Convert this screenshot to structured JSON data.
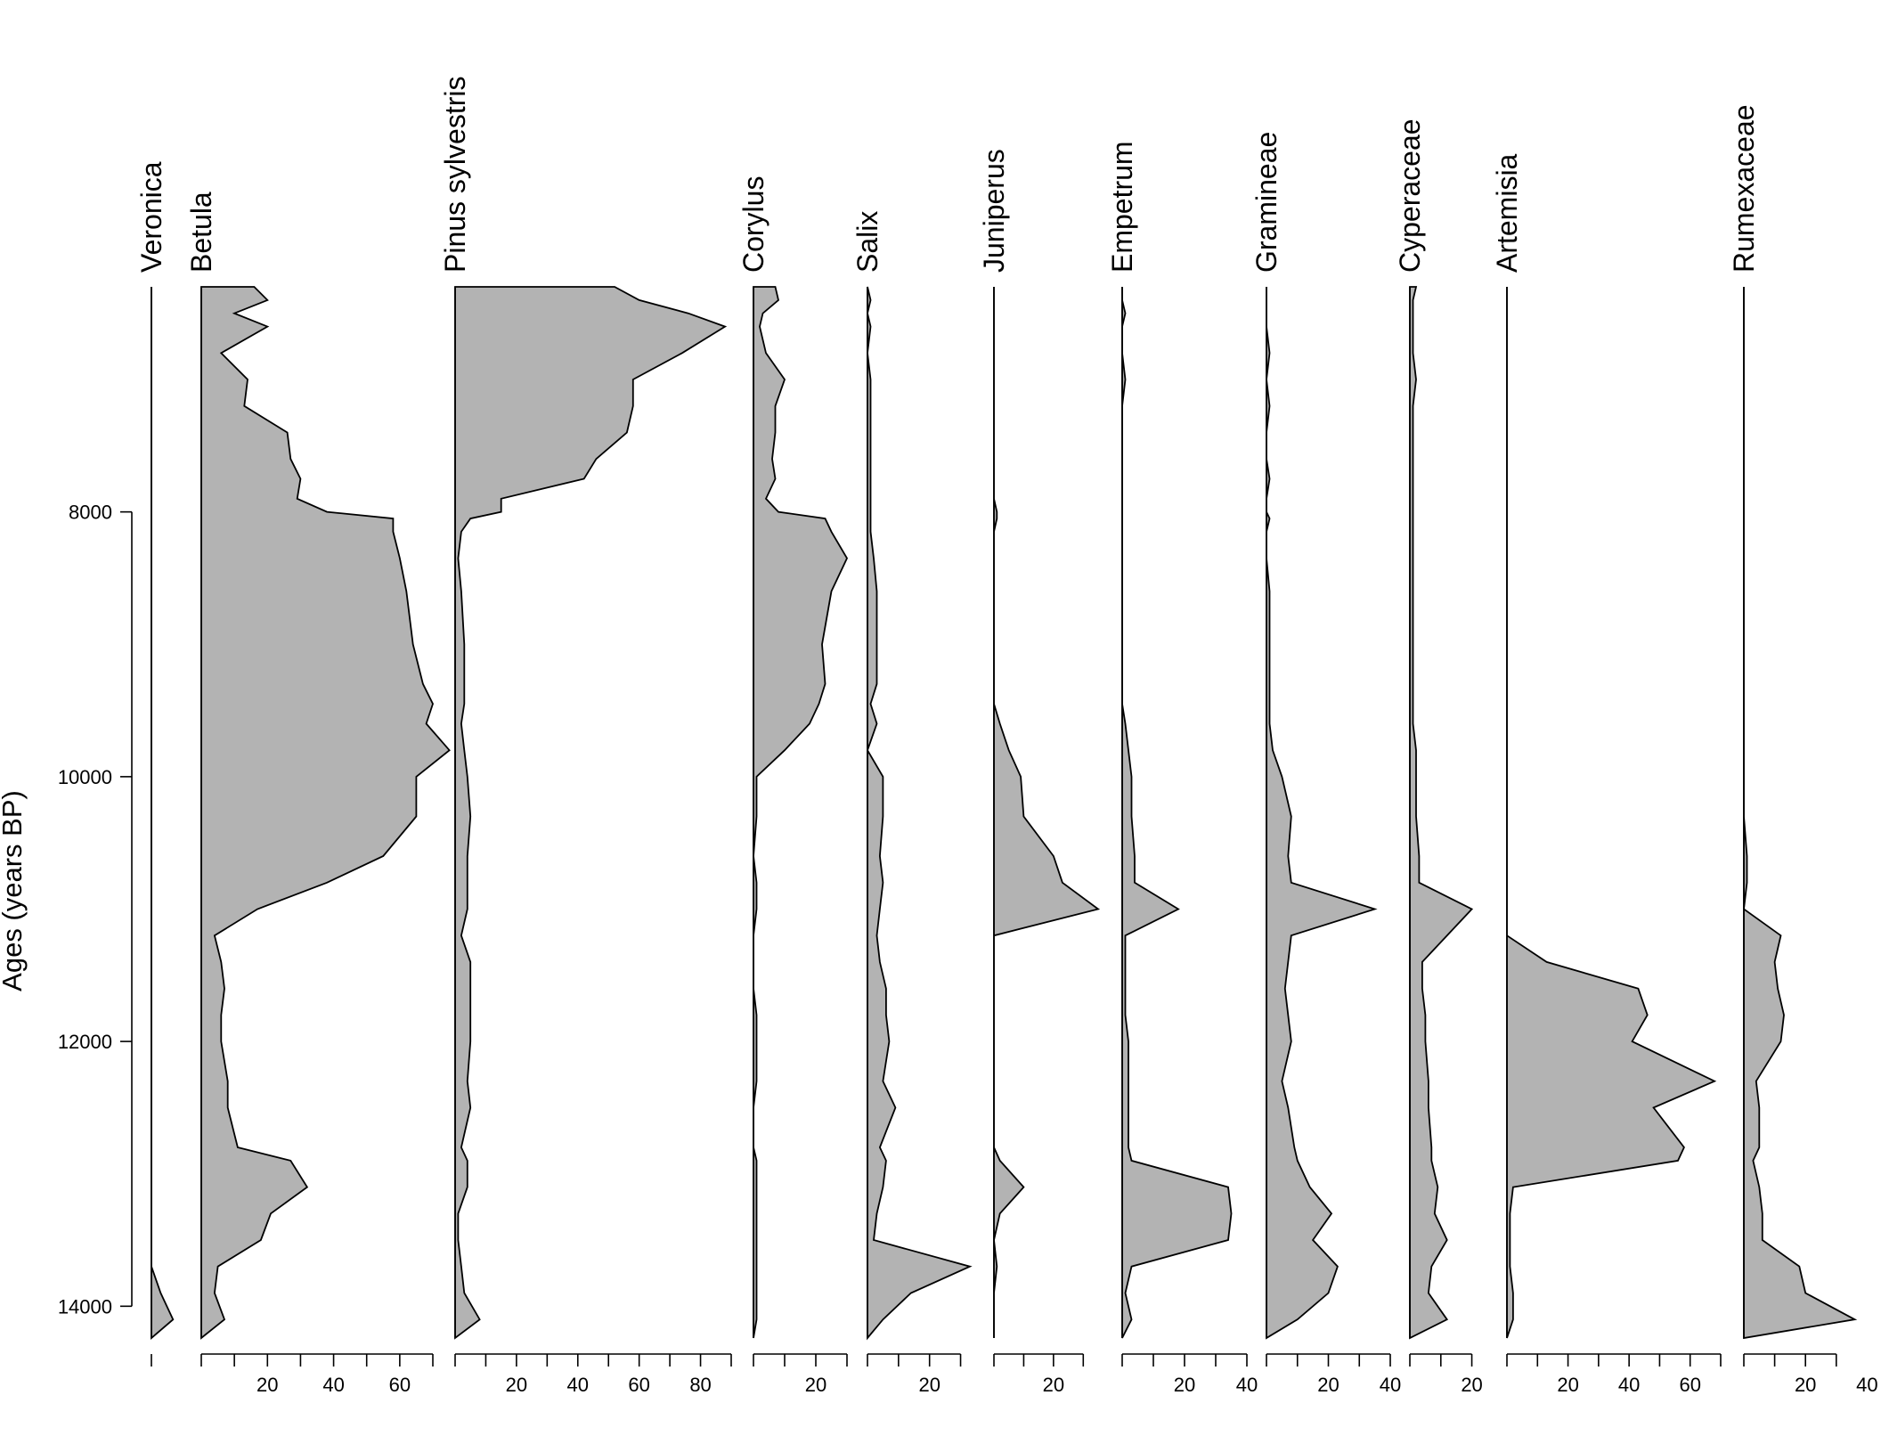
{
  "chart_data": {
    "type": "area",
    "orientation": "stratigraphic",
    "ylabel": "Ages (years BP)",
    "ylim": [
      6300,
      14240
    ],
    "y_ticks": [
      8000,
      10000,
      12000,
      14000
    ],
    "ages": [
      6300,
      6400,
      6500,
      6600,
      6800,
      7000,
      7200,
      7400,
      7600,
      7750,
      7900,
      8000,
      8050,
      8150,
      8350,
      8600,
      9000,
      9300,
      9450,
      9600,
      9800,
      10000,
      10300,
      10600,
      10800,
      11000,
      11200,
      11400,
      11600,
      11800,
      12000,
      12300,
      12500,
      12800,
      12900,
      13100,
      13300,
      13500,
      13700,
      13900,
      14100,
      14240
    ],
    "series": [
      {
        "name": "Veronica",
        "xmax": 9.5,
        "ticks": [
          0
        ],
        "values": [
          0,
          0,
          0,
          0,
          0,
          0,
          0,
          0,
          0,
          0,
          0,
          0,
          0,
          0,
          0,
          0,
          0,
          0,
          0,
          0,
          0,
          0,
          0,
          0,
          0,
          0,
          0,
          0,
          0,
          0,
          0,
          0,
          0,
          0,
          0,
          0,
          0,
          0,
          0,
          3,
          7,
          0
        ]
      },
      {
        "name": "Betula",
        "xmax": 70,
        "ticks": [
          0,
          20,
          40,
          60
        ],
        "values": [
          16,
          20,
          10,
          20,
          6,
          14,
          13,
          26,
          27,
          30,
          29,
          38,
          58,
          58,
          60,
          62,
          64,
          67,
          70,
          68,
          75,
          65,
          65,
          55,
          38,
          17,
          4,
          6,
          7,
          6,
          6,
          8,
          8,
          11,
          27,
          32,
          21,
          18,
          5,
          4,
          7,
          0
        ]
      },
      {
        "name": "Pinus sylvestris",
        "xmax": 90,
        "ticks": [
          0,
          20,
          40,
          60,
          80
        ],
        "values": [
          52,
          60,
          76,
          88,
          74,
          58,
          58,
          56,
          46,
          42,
          15,
          15,
          5,
          2,
          1,
          2,
          3,
          3,
          3,
          2,
          3,
          4,
          5,
          4,
          4,
          4,
          2,
          5,
          5,
          5,
          5,
          4,
          5,
          2,
          4,
          4,
          1,
          1,
          2,
          3,
          8,
          0
        ]
      },
      {
        "name": "Corylus",
        "xmax": 30,
        "ticks": [
          0,
          20
        ],
        "values": [
          7,
          8,
          3,
          2,
          4,
          10,
          7,
          7,
          6,
          7,
          4,
          8,
          23,
          25,
          30,
          25,
          22,
          23,
          21,
          18,
          10,
          1,
          1,
          0,
          1,
          1,
          0,
          0,
          0,
          1,
          1,
          1,
          0,
          0,
          1,
          1,
          1,
          1,
          1,
          1,
          1,
          0
        ]
      },
      {
        "name": "Salix",
        "xmax": 33,
        "ticks": [
          0,
          20
        ],
        "values": [
          0,
          1,
          0,
          1,
          0,
          1,
          1,
          1,
          1,
          1,
          1,
          1,
          1,
          1,
          2,
          3,
          3,
          3,
          1,
          3,
          0,
          5,
          5,
          4,
          5,
          4,
          3,
          4,
          6,
          6,
          7,
          5,
          9,
          4,
          6,
          5,
          3,
          2,
          33,
          14,
          5,
          0
        ]
      },
      {
        "name": "Juniperus",
        "xmax": 35,
        "ticks": [
          0,
          20
        ],
        "values": [
          0,
          0,
          0,
          0,
          0,
          0,
          0,
          0,
          0,
          0,
          0,
          1,
          1,
          0,
          0,
          0,
          0,
          0,
          0,
          2,
          5,
          9,
          10,
          20,
          23,
          35,
          0,
          0,
          0,
          0,
          0,
          0,
          0,
          0,
          2,
          10,
          2,
          0,
          1,
          0,
          0,
          0
        ]
      },
      {
        "name": "Empetrum",
        "xmax": 40,
        "ticks": [
          0,
          20,
          40
        ],
        "values": [
          0,
          0,
          1,
          0,
          0,
          1,
          0,
          0,
          0,
          0,
          0,
          0,
          0,
          0,
          0,
          0,
          0,
          0,
          0,
          1,
          2,
          3,
          3,
          4,
          4,
          18,
          1,
          1,
          1,
          1,
          2,
          2,
          2,
          2,
          3,
          34,
          35,
          34,
          3,
          1,
          3,
          0
        ]
      },
      {
        "name": "Gramineae",
        "xmax": 40,
        "ticks": [
          0,
          20,
          40
        ],
        "values": [
          0,
          0,
          0,
          0,
          1,
          0,
          1,
          0,
          0,
          1,
          0,
          0,
          1,
          0,
          0,
          1,
          1,
          1,
          1,
          1,
          2,
          5,
          8,
          7,
          8,
          35,
          8,
          7,
          6,
          7,
          8,
          5,
          7,
          9,
          10,
          14,
          21,
          15,
          23,
          20,
          10,
          0
        ]
      },
      {
        "name": "Cyperaceae",
        "xmax": 23,
        "ticks": [
          0,
          20
        ],
        "values": [
          2,
          1,
          1,
          1,
          1,
          2,
          1,
          1,
          1,
          1,
          1,
          1,
          1,
          1,
          1,
          1,
          1,
          1,
          1,
          1,
          2,
          2,
          2,
          3,
          3,
          20,
          12,
          4,
          4,
          5,
          5,
          6,
          6,
          7,
          7,
          9,
          8,
          12,
          7,
          6,
          12,
          0
        ]
      },
      {
        "name": "Artemisia",
        "xmax": 70,
        "ticks": [
          0,
          20,
          40,
          60
        ],
        "values": [
          0,
          0,
          0,
          0,
          0,
          0,
          0,
          0,
          0,
          0,
          0,
          0,
          0,
          0,
          0,
          0,
          0,
          0,
          0,
          0,
          0,
          0,
          0,
          0,
          0,
          0,
          0,
          13,
          43,
          46,
          41,
          68,
          48,
          58,
          56,
          2,
          1,
          1,
          1,
          2,
          2,
          0
        ]
      },
      {
        "name": "Rumexaceae",
        "xmax": 37,
        "ticks": [
          0,
          20,
          40
        ],
        "values": [
          0,
          0,
          0,
          0,
          0,
          0,
          0,
          0,
          0,
          0,
          0,
          0,
          0,
          0,
          0,
          0,
          0,
          0,
          0,
          0,
          0,
          0,
          0,
          1,
          1,
          0,
          12,
          10,
          11,
          13,
          12,
          4,
          5,
          5,
          3,
          5,
          6,
          6,
          18,
          20,
          36,
          0
        ]
      }
    ]
  }
}
